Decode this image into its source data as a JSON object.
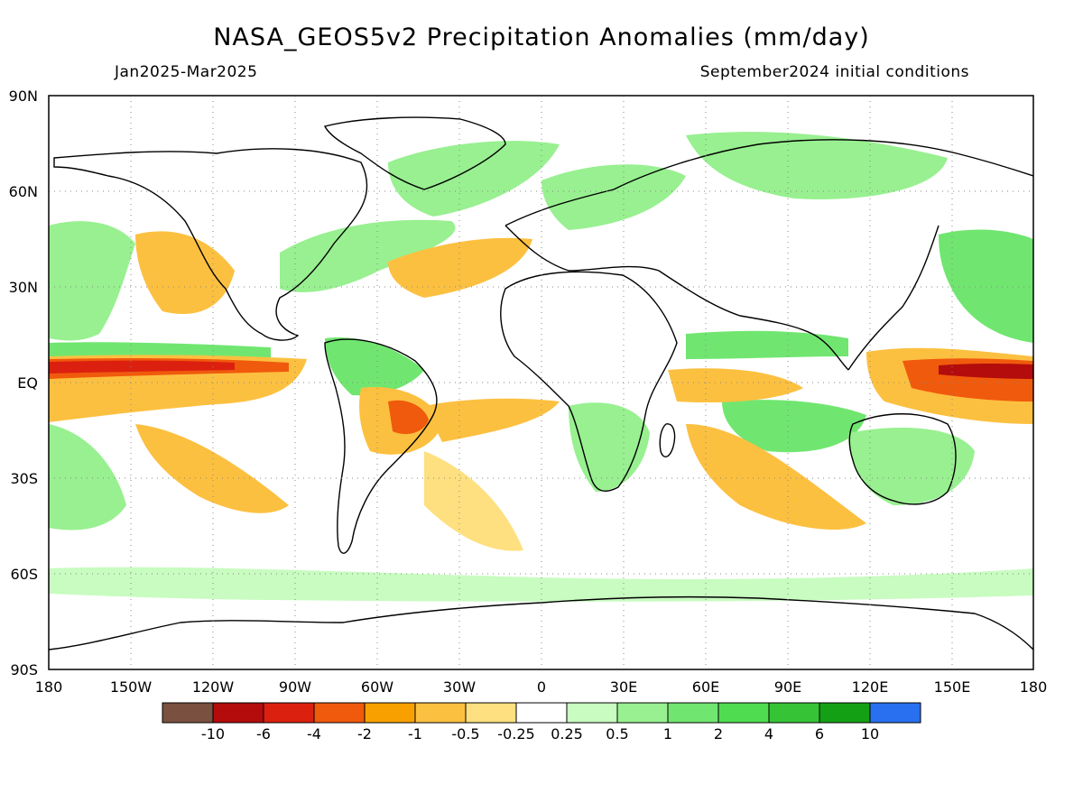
{
  "title": "NASA_GEOS5v2 Precipitation Anomalies (mm/day)",
  "subtitle_left": "Jan2025-Mar2025",
  "subtitle_right": "September2024 initial conditions",
  "axes": {
    "lat_labels": [
      "90N",
      "60N",
      "30N",
      "EQ",
      "30S",
      "60S",
      "90S"
    ],
    "lon_labels": [
      "180",
      "150W",
      "120W",
      "90W",
      "60W",
      "30W",
      "0",
      "30E",
      "60E",
      "90E",
      "120E",
      "150E",
      "180"
    ]
  },
  "colorbar": {
    "colors": [
      "#7a5040",
      "#b40c0c",
      "#dc2010",
      "#f05a0c",
      "#f8a000",
      "#fcc040",
      "#fee080",
      "#ffffff",
      "#c8fcc0",
      "#98f090",
      "#70e670",
      "#50dc50",
      "#36c436",
      "#14a014",
      "#2870f0"
    ],
    "labels": [
      "-10",
      "-6",
      "-4",
      "-2",
      "-1",
      "-0.5",
      "-0.25",
      "0.25",
      "0.5",
      "1",
      "2",
      "4",
      "6",
      "10"
    ]
  }
}
